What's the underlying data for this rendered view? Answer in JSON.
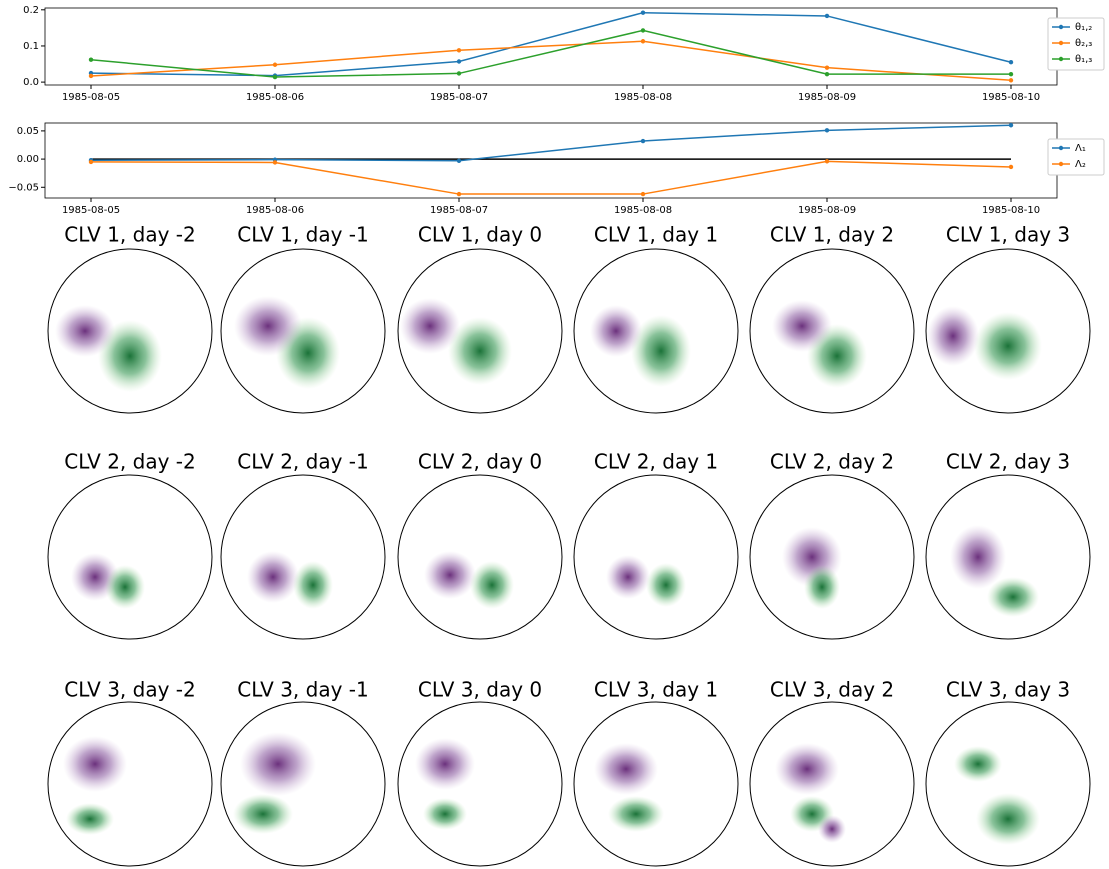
{
  "chart_data": [
    {
      "type": "line",
      "categories": [
        "1985-08-05",
        "1985-08-06",
        "1985-08-07",
        "1985-08-08",
        "1985-08-09",
        "1985-08-10"
      ],
      "series": [
        {
          "name": "θ₁,₂",
          "color": "#1f77b4",
          "values": [
            0.025,
            0.018,
            0.057,
            0.192,
            0.183,
            0.055
          ]
        },
        {
          "name": "θ₂,₃",
          "color": "#ff7f0e",
          "values": [
            0.017,
            0.048,
            0.088,
            0.113,
            0.04,
            0.005
          ]
        },
        {
          "name": "θ₁,₃",
          "color": "#2ca02c",
          "values": [
            0.062,
            0.014,
            0.024,
            0.143,
            0.022,
            0.022
          ]
        }
      ],
      "ylim": [
        -0.008,
        0.205
      ],
      "yticks": [
        {
          "value": 0,
          "label": "0.0"
        },
        0.1,
        0.2
      ],
      "legend": "upper right"
    },
    {
      "type": "line",
      "categories": [
        "1985-08-05",
        "1985-08-06",
        "1985-08-07",
        "1985-08-08",
        "1985-08-09",
        "1985-08-10"
      ],
      "series": [
        {
          "name": "Λ₁",
          "color": "#1f77b4",
          "values": [
            -0.002,
            -0.001,
            -0.003,
            0.032,
            0.051,
            0.06
          ]
        },
        {
          "name": "Λ₂",
          "color": "#ff7f0e",
          "values": [
            -0.005,
            -0.006,
            -0.062,
            -0.062,
            -0.004,
            -0.014
          ]
        }
      ],
      "hline": 0,
      "ylim": [
        -0.069,
        0.064
      ],
      "yticks": [
        {
          "value": -0.05,
          "label": "−0.05"
        },
        {
          "value": 0,
          "label": "0.00"
        },
        0.05
      ],
      "legend": "center right"
    }
  ],
  "panels": [
    {
      "title": "CLV 1, day -2"
    },
    {
      "title": "CLV 1, day -1"
    },
    {
      "title": "CLV 1, day 0"
    },
    {
      "title": "CLV 1, day 1"
    },
    {
      "title": "CLV 1, day 2"
    },
    {
      "title": "CLV 1, day 3"
    },
    {
      "title": "CLV 2, day -2"
    },
    {
      "title": "CLV 2, day -1"
    },
    {
      "title": "CLV 2, day 0"
    },
    {
      "title": "CLV 2, day 1"
    },
    {
      "title": "CLV 2, day 2"
    },
    {
      "title": "CLV 2, day 3"
    },
    {
      "title": "CLV 3, day -2"
    },
    {
      "title": "CLV 3, day -1"
    },
    {
      "title": "CLV 3, day 0"
    },
    {
      "title": "CLV 3, day 1"
    },
    {
      "title": "CLV 3, day 2"
    },
    {
      "title": "CLV 3, day 3"
    }
  ]
}
